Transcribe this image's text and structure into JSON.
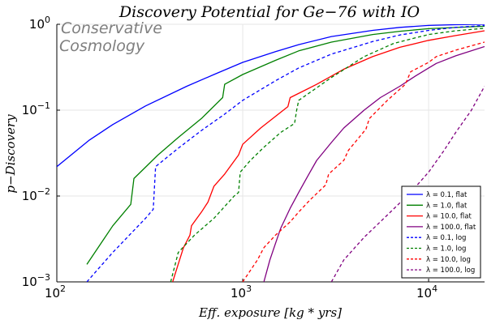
{
  "chart_data": {
    "type": "line",
    "title": "Discovery Potential for Ge−76 with IO",
    "xlabel": "Eff. exposure [kg * yrs]",
    "ylabel": "p−Discovery",
    "xscale": "log",
    "yscale": "log",
    "xlim": [
      100,
      20000
    ],
    "ylim": [
      0.001,
      1
    ],
    "grid": true,
    "legend_position": "bottom-right",
    "annotation": [
      "Conservative",
      "Cosmology"
    ],
    "x_ticks": [
      {
        "base": "10",
        "exp": "2",
        "value": 100
      },
      {
        "base": "10",
        "exp": "3",
        "value": 1000
      },
      {
        "base": "10",
        "exp": "4",
        "value": 10000
      }
    ],
    "y_ticks": [
      {
        "base": "10",
        "exp": "0",
        "value": 1
      },
      {
        "base": "10",
        "exp": "−1",
        "value": 0.1
      },
      {
        "base": "10",
        "exp": "−2",
        "value": 0.01
      },
      {
        "base": "10",
        "exp": "−3",
        "value": 0.001
      }
    ],
    "series": [
      {
        "name": "λ = 0.1, flat",
        "color": "#0000ff",
        "dash": "solid",
        "x": [
          100,
          150,
          200,
          300,
          500,
          700,
          1000,
          1500,
          2000,
          3000,
          5000,
          7000,
          10000,
          14000,
          20000
        ],
        "y": [
          0.022,
          0.045,
          0.068,
          0.112,
          0.19,
          0.26,
          0.36,
          0.48,
          0.58,
          0.72,
          0.85,
          0.92,
          0.97,
          0.99,
          1.0
        ]
      },
      {
        "name": "λ = 1.0, flat",
        "color": "#008000",
        "dash": "solid",
        "x": [
          145,
          200,
          250,
          260,
          350,
          450,
          600,
          780,
          800,
          1000,
          1500,
          2000,
          3000,
          5000,
          7000,
          10000,
          20000
        ],
        "y": [
          0.0016,
          0.0045,
          0.008,
          0.016,
          0.03,
          0.048,
          0.08,
          0.14,
          0.2,
          0.26,
          0.38,
          0.49,
          0.62,
          0.76,
          0.83,
          0.89,
          0.95
        ]
      },
      {
        "name": "λ = 10.0, flat",
        "color": "#ff0000",
        "dash": "solid",
        "x": [
          420,
          480,
          520,
          530,
          600,
          650,
          700,
          800,
          950,
          1000,
          1250,
          1750,
          1800,
          2500,
          3500,
          5000,
          7000,
          10000,
          14000,
          20000
        ],
        "y": [
          0.001,
          0.0025,
          0.0035,
          0.0045,
          0.0065,
          0.0085,
          0.013,
          0.018,
          0.03,
          0.04,
          0.062,
          0.11,
          0.14,
          0.2,
          0.3,
          0.42,
          0.54,
          0.65,
          0.74,
          0.84
        ]
      },
      {
        "name": "λ = 100.0, flat",
        "color": "#800080",
        "dash": "solid",
        "x": [
          1300,
          1400,
          1500,
          1600,
          1800,
          2000,
          2200,
          2500,
          3000,
          3500,
          4500,
          5500,
          7000,
          8500,
          10000,
          11000,
          14000,
          20000
        ],
        "y": [
          0.001,
          0.0018,
          0.0028,
          0.0042,
          0.0072,
          0.011,
          0.016,
          0.026,
          0.042,
          0.062,
          0.1,
          0.14,
          0.19,
          0.25,
          0.31,
          0.35,
          0.43,
          0.55
        ]
      },
      {
        "name": "λ = 0.1, log",
        "color": "#0000ff",
        "dash": "dashed",
        "x": [
          145,
          200,
          300,
          330,
          340,
          450,
          600,
          800,
          1000,
          1500,
          2000,
          3000,
          5000,
          7000,
          10000,
          14000,
          20000
        ],
        "y": [
          0.001,
          0.0022,
          0.0055,
          0.007,
          0.022,
          0.036,
          0.058,
          0.09,
          0.13,
          0.22,
          0.31,
          0.45,
          0.63,
          0.75,
          0.85,
          0.92,
          0.97
        ]
      },
      {
        "name": "λ = 1.0, log",
        "color": "#008000",
        "dash": "dashed",
        "x": [
          410,
          450,
          550,
          700,
          900,
          950,
          970,
          1100,
          1300,
          1600,
          1900,
          1950,
          2000,
          3000,
          4500,
          6500,
          10000,
          14000,
          20000
        ],
        "y": [
          0.001,
          0.0022,
          0.0035,
          0.0055,
          0.01,
          0.011,
          0.019,
          0.026,
          0.037,
          0.055,
          0.07,
          0.1,
          0.13,
          0.24,
          0.42,
          0.6,
          0.76,
          0.84,
          0.9
        ]
      },
      {
        "name": "λ = 10.0, log",
        "color": "#ff0000",
        "dash": "dashed",
        "x": [
          1000,
          1200,
          1300,
          1500,
          1800,
          2000,
          2300,
          2800,
          2900,
          3500,
          3700,
          4600,
          4800,
          6000,
          7500,
          8000,
          10000,
          11000,
          14000,
          20000
        ],
        "y": [
          0.001,
          0.0018,
          0.0025,
          0.0035,
          0.005,
          0.0065,
          0.009,
          0.0135,
          0.018,
          0.026,
          0.034,
          0.06,
          0.08,
          0.13,
          0.2,
          0.28,
          0.36,
          0.42,
          0.5,
          0.62
        ]
      },
      {
        "name": "λ = 100.0, log",
        "color": "#800080",
        "dash": "dashed",
        "x": [
          3000,
          3500,
          4500,
          6000,
          8000,
          10000,
          12000,
          14000,
          17000,
          20000
        ],
        "y": [
          0.001,
          0.0018,
          0.0033,
          0.006,
          0.011,
          0.019,
          0.033,
          0.055,
          0.1,
          0.19
        ]
      }
    ]
  }
}
